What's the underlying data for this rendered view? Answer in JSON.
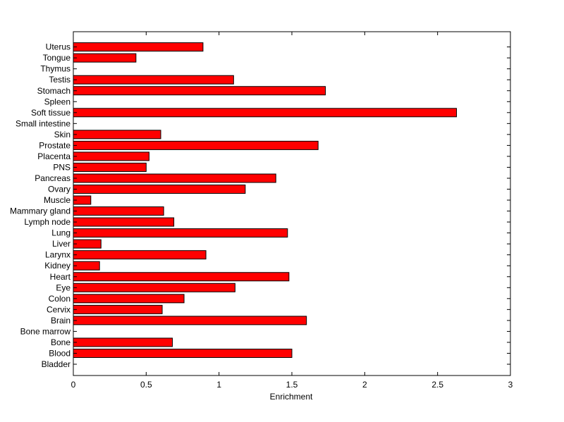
{
  "chart_data": {
    "type": "bar",
    "orientation": "horizontal",
    "title": "",
    "xlabel": "Enrichment",
    "ylabel": "",
    "xlim": [
      0,
      3
    ],
    "x_ticks": [
      0,
      0.5,
      1,
      1.5,
      2,
      2.5,
      3
    ],
    "x_tick_labels": [
      "0",
      "0.5",
      "1",
      "1.5",
      "2",
      "2.5",
      "3"
    ],
    "grid": false,
    "legend": "none",
    "bar_color": "#ff0000",
    "edge_color": "#000000",
    "categories": [
      "Bladder",
      "Blood",
      "Bone",
      "Bone marrow",
      "Brain",
      "Cervix",
      "Colon",
      "Eye",
      "Heart",
      "Kidney",
      "Larynx",
      "Liver",
      "Lung",
      "Lymph node",
      "Mammary gland",
      "Muscle",
      "Ovary",
      "Pancreas",
      "PNS",
      "Placenta",
      "Prostate",
      "Skin",
      "Small intestine",
      "Soft tissue",
      "Spleen",
      "Stomach",
      "Testis",
      "Thymus",
      "Tongue",
      "Uterus"
    ],
    "values": [
      0,
      1.5,
      0.68,
      0,
      1.6,
      0.61,
      0.76,
      1.11,
      1.48,
      0.18,
      0.91,
      0.19,
      1.47,
      0.69,
      0.62,
      0.12,
      1.18,
      1.39,
      0.5,
      0.52,
      1.68,
      0.6,
      0,
      2.63,
      0,
      1.73,
      1.1,
      0,
      0.43,
      0.89
    ]
  }
}
